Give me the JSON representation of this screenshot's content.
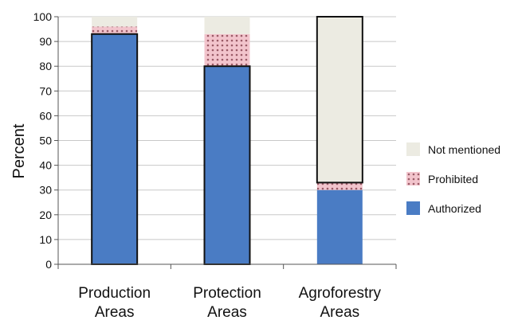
{
  "chart_data": {
    "type": "bar",
    "stacked": true,
    "ylabel": "Percent",
    "ylim": [
      0,
      100
    ],
    "yticks": [
      0,
      10,
      20,
      30,
      40,
      50,
      60,
      70,
      80,
      90,
      100
    ],
    "grid": true,
    "legend_position": "right",
    "categories": [
      [
        "Production",
        "Areas"
      ],
      [
        "Protection",
        "Areas"
      ],
      [
        "Agroforestry",
        "Areas"
      ]
    ],
    "series": [
      {
        "name": "Authorized",
        "values": [
          93,
          80,
          30
        ],
        "color": "#4a7cc4",
        "pattern": "solid"
      },
      {
        "name": "Prohibited",
        "values": [
          3,
          13,
          3
        ],
        "color": "#f2c4cc",
        "pattern": "dotted"
      },
      {
        "name": "Not mentioned",
        "values": [
          4,
          7,
          67
        ],
        "color": "#ecebe2",
        "pattern": "solid"
      }
    ],
    "legend_order": [
      "Not mentioned",
      "Prohibited",
      "Authorized"
    ]
  }
}
